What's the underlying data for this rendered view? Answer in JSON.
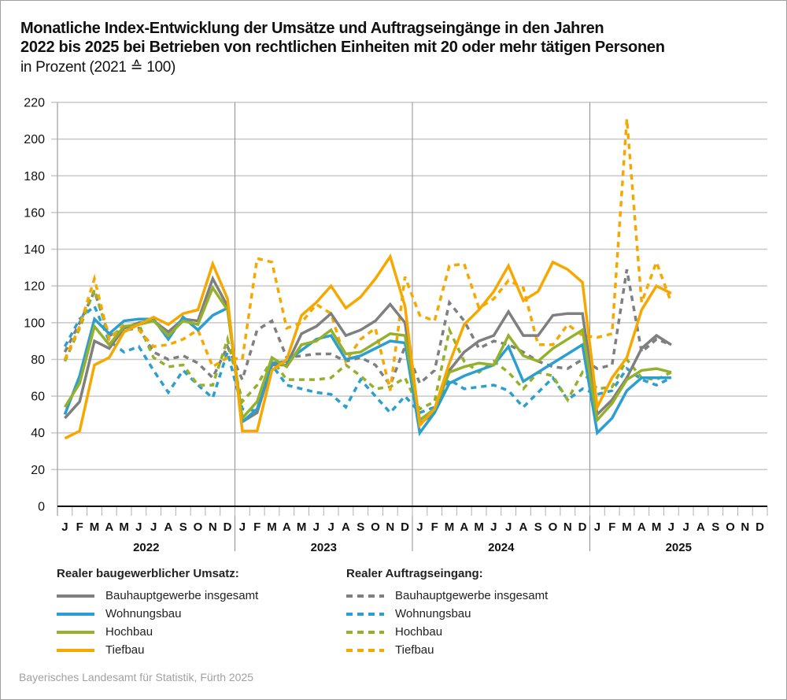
{
  "header": {
    "title_line1": "Monatliche Index-Entwicklung der Umsätze und Auftragseingänge in den Jahren",
    "title_line2": "2022 bis 2025 bei Betrieben von rechtlichen Einheiten mit 20 oder mehr tätigen Personen",
    "subtitle": "in Prozent (2021 ≙ 100)"
  },
  "legend": {
    "solid_heading": "Realer baugewerblicher Umsatz:",
    "dashed_heading": "Realer Auftragseingang:",
    "solid_items": [
      "Bauhauptgewerbe insgesamt",
      "Wohnungsbau",
      "Hochbau",
      "Tiefbau"
    ],
    "dashed_items": [
      "Bauhauptgewerbe insgesamt",
      "Wohnungsbau",
      "Hochbau",
      "Tiefbau"
    ]
  },
  "footer": {
    "source": "Bayerisches Landesamt für Statistik, Fürth 2025"
  },
  "colors": {
    "Bauhauptgewerbe insgesamt": "#7f7f7f",
    "Wohnungsbau": "#2a9fd0",
    "Hochbau": "#95b12b",
    "Tiefbau": "#f7a800"
  },
  "chart_data": {
    "type": "line",
    "title": "Monatliche Index-Entwicklung der Umsätze und Auftragseingänge in den Jahren 2022 bis 2025 bei Betrieben von rechtlichen Einheiten mit 20 oder mehr tätigen Personen",
    "subtitle": "in Prozent (2021 ≙ 100)",
    "xlabel": "",
    "ylabel": "",
    "ylim": [
      0,
      220
    ],
    "yticks": [
      0,
      20,
      40,
      60,
      80,
      100,
      120,
      140,
      160,
      180,
      200,
      220
    ],
    "grid": true,
    "month_labels": [
      "J",
      "F",
      "M",
      "A",
      "M",
      "J",
      "J",
      "A",
      "S",
      "O",
      "N",
      "D"
    ],
    "years": [
      "2022",
      "2023",
      "2024",
      "2025"
    ],
    "legend_position": "bottom",
    "series": [
      {
        "name": "Bauhauptgewerbe insgesamt",
        "group": "Realer baugewerblicher Umsatz",
        "style": "solid",
        "values": [
          48,
          57,
          90,
          86,
          97,
          100,
          101,
          95,
          102,
          101,
          124,
          109,
          46,
          51,
          77,
          77,
          94,
          98,
          105,
          93,
          96,
          101,
          110,
          100,
          45,
          51,
          74,
          84,
          90,
          93,
          106,
          93,
          93,
          104,
          105,
          105,
          50,
          58,
          70,
          86,
          93,
          88
        ]
      },
      {
        "name": "Wohnungsbau",
        "group": "Realer baugewerblicher Umsatz",
        "style": "solid",
        "values": [
          50,
          71,
          102,
          94,
          101,
          102,
          102,
          91,
          103,
          96,
          104,
          108,
          46,
          53,
          78,
          79,
          85,
          91,
          93,
          80,
          82,
          86,
          90,
          89,
          40,
          51,
          67,
          71,
          74,
          77,
          87,
          68,
          73,
          78,
          83,
          88,
          40,
          48,
          63,
          70,
          70,
          70
        ]
      },
      {
        "name": "Hochbau",
        "group": "Realer baugewerblicher Umsatz",
        "style": "solid",
        "values": [
          54,
          67,
          98,
          88,
          98,
          99,
          101,
          93,
          101,
          99,
          119,
          107,
          48,
          57,
          81,
          76,
          88,
          90,
          96,
          83,
          84,
          89,
          94,
          93,
          47,
          53,
          73,
          76,
          78,
          77,
          93,
          82,
          79,
          86,
          91,
          96,
          47,
          56,
          69,
          74,
          75,
          73
        ]
      },
      {
        "name": "Tiefbau",
        "group": "Realer baugewerblicher Umsatz",
        "style": "solid",
        "values": [
          37,
          41,
          77,
          81,
          95,
          99,
          103,
          99,
          105,
          107,
          132,
          113,
          41,
          41,
          74,
          80,
          104,
          111,
          120,
          108,
          114,
          124,
          136,
          109,
          44,
          53,
          78,
          99,
          107,
          117,
          131,
          112,
          117,
          133,
          129,
          122,
          54,
          70,
          81,
          107,
          120,
          116
        ]
      },
      {
        "name": "Bauhauptgewerbe insgesamt",
        "group": "Realer Auftragseingang",
        "style": "dashed",
        "values": [
          84,
          100,
          117,
          93,
          96,
          97,
          84,
          80,
          82,
          78,
          70,
          87,
          69,
          96,
          101,
          81,
          82,
          83,
          83,
          79,
          81,
          77,
          66,
          87,
          67,
          74,
          111,
          101,
          86,
          90,
          88,
          84,
          79,
          76,
          75,
          80,
          75,
          77,
          129,
          84,
          91,
          88
        ]
      },
      {
        "name": "Wohnungsbau",
        "group": "Realer Auftragseingang",
        "style": "dashed",
        "values": [
          87,
          102,
          109,
          90,
          84,
          87,
          74,
          62,
          74,
          66,
          59,
          84,
          53,
          52,
          77,
          66,
          64,
          62,
          61,
          54,
          69,
          60,
          51,
          60,
          51,
          54,
          69,
          64,
          65,
          66,
          63,
          54,
          62,
          70,
          58,
          64,
          61,
          63,
          75,
          69,
          66,
          70
        ]
      },
      {
        "name": "Hochbau",
        "group": "Realer Auftragseingang",
        "style": "dashed",
        "values": [
          79,
          97,
          118,
          92,
          98,
          99,
          81,
          76,
          77,
          66,
          66,
          91,
          57,
          66,
          80,
          69,
          69,
          69,
          70,
          77,
          71,
          64,
          65,
          70,
          53,
          57,
          96,
          79,
          73,
          79,
          73,
          64,
          73,
          71,
          58,
          73,
          64,
          65,
          80,
          70,
          69,
          73
        ]
      },
      {
        "name": "Tiefbau",
        "group": "Realer Auftragseingang",
        "style": "dashed",
        "values": [
          80,
          98,
          124,
          91,
          99,
          96,
          87,
          88,
          91,
          96,
          76,
          81,
          80,
          135,
          133,
          97,
          100,
          110,
          105,
          79,
          91,
          97,
          63,
          125,
          104,
          101,
          131,
          132,
          108,
          113,
          123,
          119,
          88,
          88,
          99,
          93,
          92,
          94,
          211,
          111,
          133,
          111
        ]
      }
    ]
  }
}
